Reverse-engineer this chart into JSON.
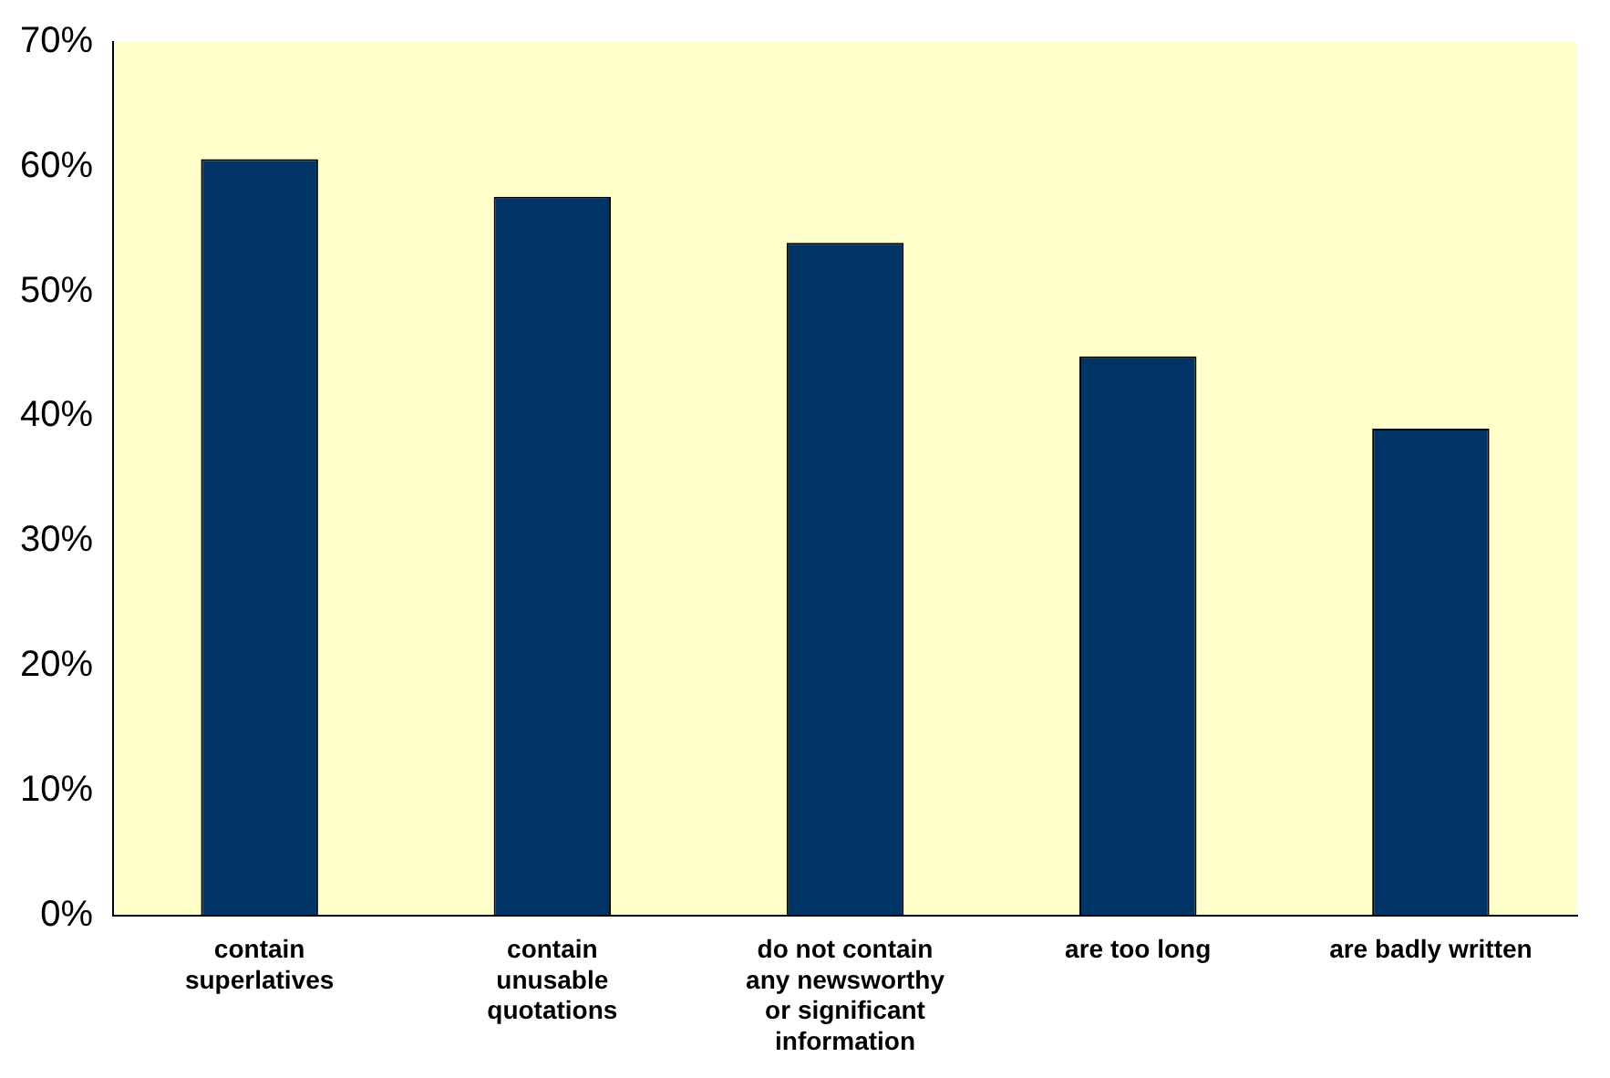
{
  "chart_data": {
    "type": "bar",
    "categories": [
      [
        "contain",
        "superlatives"
      ],
      [
        "contain",
        "unusable",
        "quotations"
      ],
      [
        "do not contain",
        "any newsworthy",
        "or significant",
        "information"
      ],
      [
        "are too long"
      ],
      [
        "are badly written"
      ]
    ],
    "values": [
      60.6,
      57.6,
      53.9,
      44.8,
      39.0
    ],
    "color": "#003366",
    "ylim": [
      0,
      70
    ],
    "yticks": [
      {
        "value": 0,
        "label": "0%"
      },
      {
        "value": 10,
        "label": "10%"
      },
      {
        "value": 20,
        "label": "20%"
      },
      {
        "value": 30,
        "label": "30%"
      },
      {
        "value": 40,
        "label": "40%"
      },
      {
        "value": 50,
        "label": "50%"
      },
      {
        "value": 60,
        "label": "60%"
      },
      {
        "value": 70,
        "label": "70%"
      }
    ],
    "grid": false,
    "legend": false
  }
}
